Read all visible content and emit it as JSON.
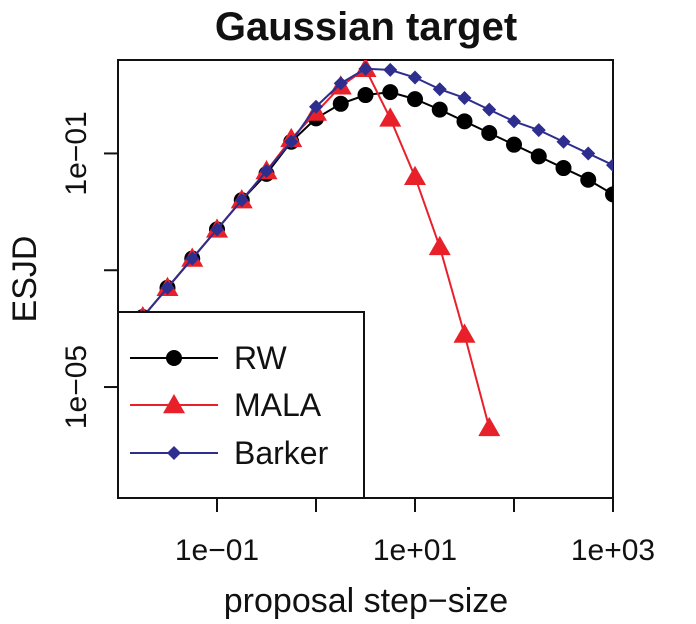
{
  "chart_data": {
    "type": "line",
    "title": "Gaussian target",
    "xlabel": "proposal step−size",
    "ylabel": "ESJD",
    "xscale": "log10",
    "yscale": "log10",
    "xlim_log10": [
      -2.0,
      3.0
    ],
    "ylim_log10": [
      -6.9,
      0.6
    ],
    "x_ticks_log10": [
      -1,
      0,
      1,
      2,
      3
    ],
    "x_tick_labels": [
      {
        "log10": -1,
        "label": "1e−01"
      },
      {
        "log10": 1,
        "label": "1e+01"
      },
      {
        "log10": 3,
        "label": "1e+03"
      }
    ],
    "y_ticks_log10": [
      -1,
      -3,
      -5
    ],
    "y_tick_labels": [
      {
        "log10": -1,
        "label": "1e−01"
      },
      {
        "log10": -5,
        "label": "1e−05"
      }
    ],
    "legend": {
      "position": "bottom-left",
      "entries": [
        "RW",
        "MALA",
        "Barker"
      ]
    },
    "series": [
      {
        "name": "RW",
        "color": "#000000",
        "marker": "circle",
        "x_log10": [
          -1.75,
          -1.5,
          -1.25,
          -1.0,
          -0.75,
          -0.5,
          -0.25,
          0.0,
          0.25,
          0.5,
          0.75,
          1.0,
          1.25,
          1.5,
          1.75,
          2.0,
          2.25,
          2.5,
          2.75,
          3.0
        ],
        "y_log10": [
          -3.8,
          -3.3,
          -2.8,
          -2.3,
          -1.8,
          -1.35,
          -0.8,
          -0.4,
          -0.15,
          0.0,
          0.05,
          -0.07,
          -0.25,
          -0.45,
          -0.65,
          -0.85,
          -1.05,
          -1.25,
          -1.45,
          -1.7
        ]
      },
      {
        "name": "MALA",
        "color": "#e8202a",
        "marker": "triangle",
        "x_log10": [
          -1.75,
          -1.5,
          -1.25,
          -1.0,
          -0.75,
          -0.5,
          -0.25,
          0.0,
          0.25,
          0.5,
          0.75,
          1.0,
          1.25,
          1.5,
          1.75
        ],
        "y_log10": [
          -3.8,
          -3.3,
          -2.8,
          -2.3,
          -1.8,
          -1.3,
          -0.75,
          -0.3,
          0.15,
          0.45,
          -0.4,
          -1.4,
          -2.6,
          -4.1,
          -5.7
        ]
      },
      {
        "name": "Barker",
        "color": "#2e2e8e",
        "marker": "diamond",
        "x_log10": [
          -1.75,
          -1.5,
          -1.25,
          -1.0,
          -0.75,
          -0.5,
          -0.25,
          0.0,
          0.25,
          0.5,
          0.75,
          1.0,
          1.25,
          1.5,
          1.75,
          2.0,
          2.25,
          2.5,
          2.75,
          3.0
        ],
        "y_log10": [
          -3.8,
          -3.3,
          -2.8,
          -2.3,
          -1.8,
          -1.3,
          -0.8,
          -0.2,
          0.2,
          0.45,
          0.43,
          0.3,
          0.1,
          -0.05,
          -0.25,
          -0.45,
          -0.6,
          -0.8,
          -1.0,
          -1.2
        ]
      }
    ]
  }
}
